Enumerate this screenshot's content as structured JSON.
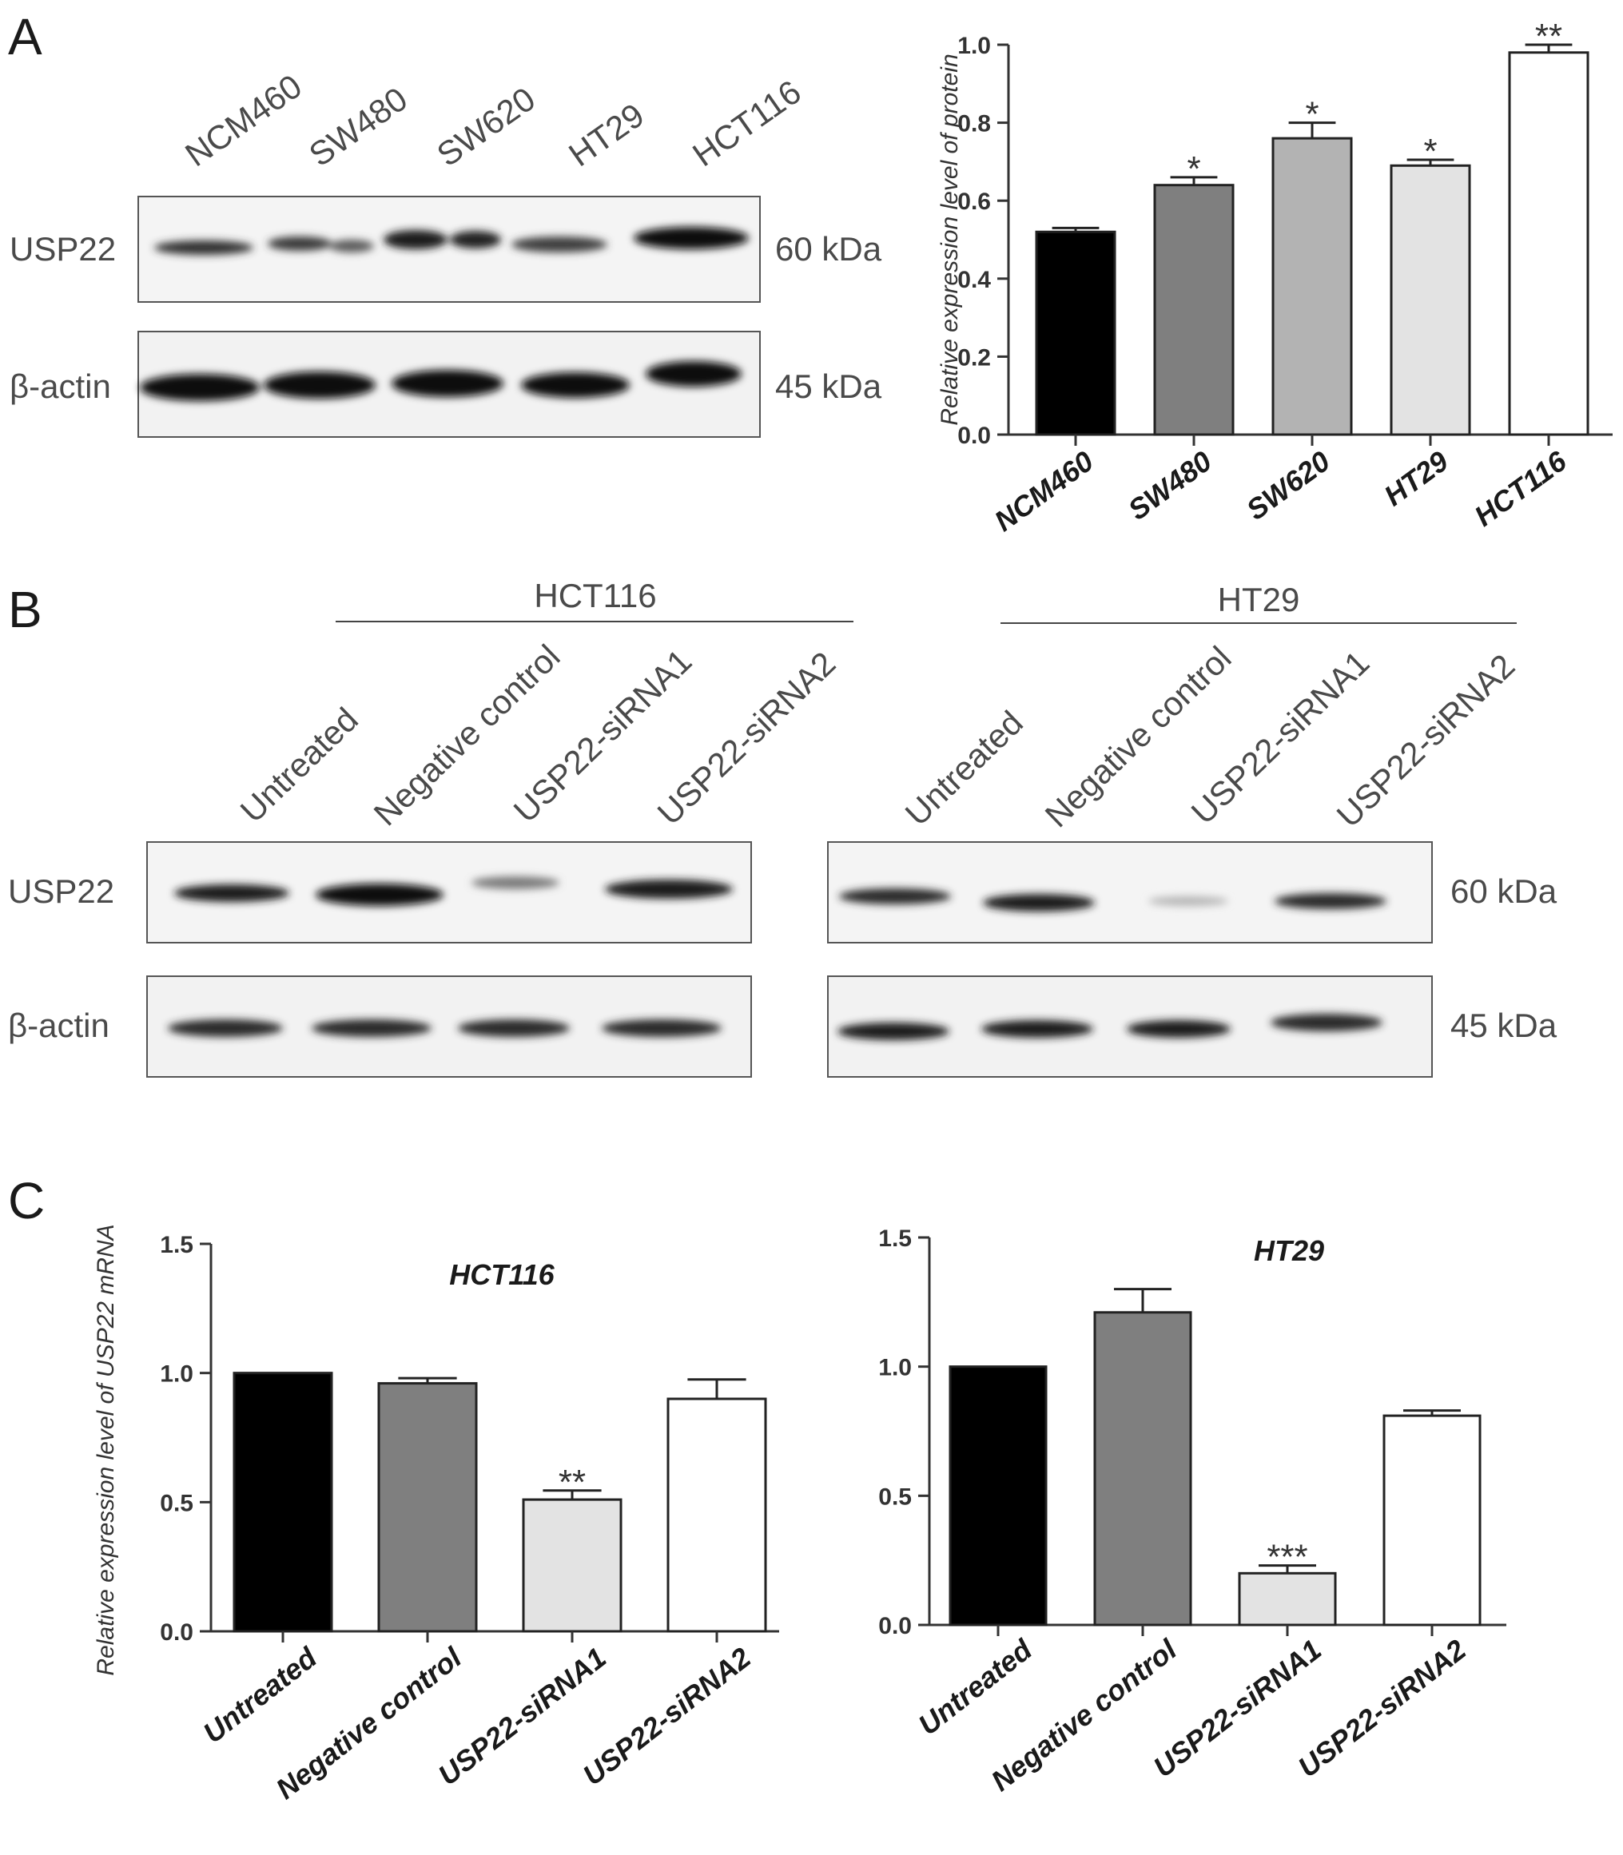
{
  "panels": {
    "a": "A",
    "b": "B",
    "c": "C"
  },
  "blot_a": {
    "lanes": [
      "NCM460",
      "SW480",
      "SW620",
      "HT29",
      "HCT116"
    ],
    "rows": [
      {
        "protein": "USP22",
        "size": "60 kDa"
      },
      {
        "protein": "β-actin",
        "size": "45 kDa"
      }
    ]
  },
  "blot_b": {
    "groups": [
      {
        "cell_line": "HCT116",
        "lanes": [
          "Untreated",
          "Negative control",
          "USP22-siRNA1",
          "USP22-siRNA2"
        ]
      },
      {
        "cell_line": "HT29",
        "lanes": [
          "Untreated",
          "Negative control",
          "USP22-siRNA1",
          "USP22-siRNA2"
        ]
      }
    ],
    "rows": [
      {
        "protein": "USP22",
        "size": "60 kDa"
      },
      {
        "protein": "β-actin",
        "size": "45 kDa"
      }
    ]
  },
  "colors": {
    "black": "#000000",
    "dark_gray": "#7f7f7f",
    "mid_gray": "#b3b3b3",
    "light_gray": "#e3e3e3",
    "white": "#ffffff",
    "axis": "#333333"
  },
  "chart_data": [
    {
      "type": "bar",
      "panel": "A",
      "title": "",
      "xlabel": "",
      "ylabel": "Relative expression level of protein",
      "categories": [
        "NCM460",
        "SW480",
        "SW620",
        "HT29",
        "HCT116"
      ],
      "values": [
        0.52,
        0.64,
        0.76,
        0.69,
        0.98
      ],
      "errors": [
        0.01,
        0.02,
        0.04,
        0.015,
        0.02
      ],
      "significance": [
        "",
        "*",
        "*",
        "*",
        "**"
      ],
      "bar_colors": [
        "#000000",
        "#7f7f7f",
        "#b3b3b3",
        "#e3e3e3",
        "#ffffff"
      ],
      "ylim": [
        0,
        1.0
      ],
      "yticks": [
        "0.0",
        "0.2",
        "0.4",
        "0.6",
        "0.8",
        "1.0"
      ],
      "grid": false,
      "legend": "none"
    },
    {
      "type": "bar",
      "panel": "C",
      "title": "HCT116",
      "xlabel": "",
      "ylabel": "Relative expression level of  USP22 mRNA",
      "categories": [
        "Untreated",
        "Negative control",
        "USP22-siRNA1",
        "USP22-siRNA2"
      ],
      "values": [
        1.0,
        0.96,
        0.51,
        0.9
      ],
      "errors": [
        0,
        0.02,
        0.035,
        0.075
      ],
      "significance": [
        "",
        "",
        "**",
        ""
      ],
      "bar_colors": [
        "#000000",
        "#7f7f7f",
        "#e3e3e3",
        "#ffffff"
      ],
      "ylim": [
        0,
        1.5
      ],
      "yticks": [
        "0.0",
        "0.5",
        "1.0",
        "1.5"
      ],
      "grid": false,
      "legend": "none"
    },
    {
      "type": "bar",
      "panel": "C",
      "title": "HT29",
      "xlabel": "",
      "ylabel": "",
      "categories": [
        "Untreated",
        "Negative control",
        "USP22-siRNA1",
        "USP22-siRNA2"
      ],
      "values": [
        1.0,
        1.21,
        0.2,
        0.81
      ],
      "errors": [
        0,
        0.09,
        0.03,
        0.02
      ],
      "significance": [
        "",
        "",
        "***",
        ""
      ],
      "bar_colors": [
        "#000000",
        "#7f7f7f",
        "#e3e3e3",
        "#ffffff"
      ],
      "ylim": [
        0,
        1.5
      ],
      "yticks": [
        "0.0",
        "0.5",
        "1.0",
        "1.5"
      ],
      "grid": false,
      "legend": "none"
    }
  ]
}
